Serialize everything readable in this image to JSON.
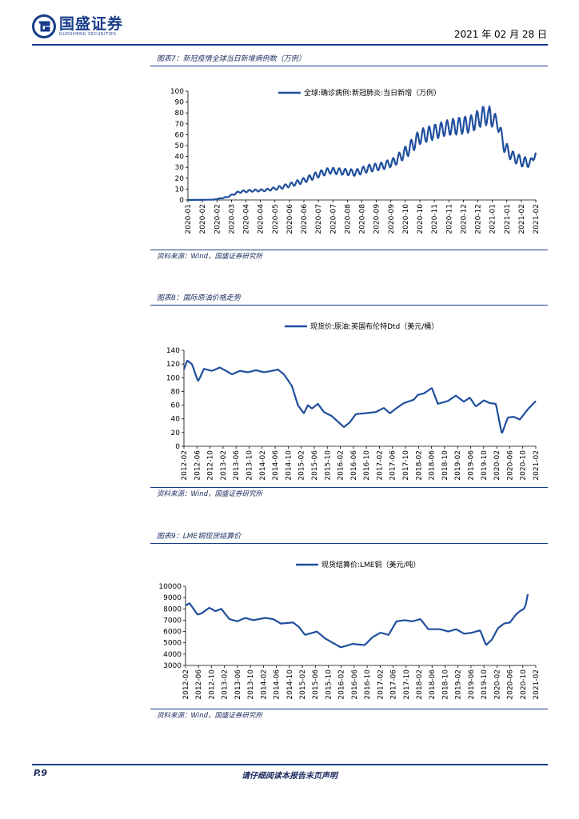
{
  "header": {
    "logo_cn": "国盛证券",
    "logo_en": "GUOSHENG SECURITIES",
    "date": "2021 年 02 月 28 日"
  },
  "footer": {
    "page": "P.9",
    "disclaimer": "请仔细阅读本报告末页声明"
  },
  "figures": [
    {
      "title": "图表7：新冠疫情全球当日新增病例数（万例）",
      "source": "资料来源：Wind，国盛证券研究所"
    },
    {
      "title": "图表8：国际原油价格走势",
      "source": "资料来源：Wind，国盛证券研究所"
    },
    {
      "title": "图表9：LME铜现货结算价",
      "source": "资料来源：Wind，国盛证券研究所"
    }
  ],
  "colors": {
    "series": "#1f4e9e",
    "brand": "#173c8a"
  },
  "chart_data": [
    {
      "type": "line",
      "legend": "全球:确诊病例:新冠肺炎:当日新增（万例）",
      "ylim": [
        0,
        100
      ],
      "yticks": [
        0,
        10,
        20,
        30,
        40,
        50,
        60,
        70,
        80,
        90,
        100
      ],
      "xlim": [
        0,
        13.5
      ],
      "xticks": [
        "2020-01",
        "2020-02",
        "2020-02",
        "2020-03",
        "2020-04",
        "2020-04",
        "2020-05",
        "2020-06",
        "2020-06",
        "2020-07",
        "2020-07",
        "2020-08",
        "2020-08",
        "2020-09",
        "2020-09",
        "2020-10",
        "2020-10",
        "2020-11",
        "2020-11",
        "2020-12",
        "2020-12",
        "2021-01",
        "2021-01",
        "2021-02",
        "2021-02"
      ],
      "x": [
        0,
        0.5,
        1,
        1.5,
        2,
        2.5,
        3,
        3.5,
        4,
        4.5,
        5,
        5.5,
        6,
        6.5,
        7,
        7.5,
        8,
        8.5,
        9,
        9.5,
        10,
        10.5,
        11,
        11.5,
        12,
        12.3,
        12.6,
        13,
        13.3,
        13.5
      ],
      "values": [
        0,
        0.1,
        0.3,
        2.5,
        7.5,
        8.5,
        9,
        11,
        14,
        18,
        23,
        27,
        26,
        25,
        29,
        31,
        35,
        45,
        58,
        62,
        66,
        68,
        70,
        78,
        72,
        48,
        40,
        35,
        34,
        43
      ],
      "wave_amplitude": [
        0,
        0,
        0,
        0.4,
        1,
        1,
        1,
        1.5,
        2,
        2.5,
        3,
        3,
        3,
        3,
        3.5,
        3.5,
        4,
        6,
        7,
        7,
        7,
        8,
        8,
        9,
        6,
        6,
        5,
        5,
        4,
        2
      ],
      "peak": {
        "x": 11.7,
        "value": 86
      }
    },
    {
      "type": "line",
      "legend": "现货价:原油:英国布伦特Dtd（美元/桶）",
      "ylim": [
        0,
        140
      ],
      "yticks": [
        0,
        20,
        40,
        60,
        80,
        100,
        120,
        140
      ],
      "xlim": [
        0,
        8.8
      ],
      "xticks": [
        "2012-02",
        "2012-06",
        "2012-10",
        "2013-02",
        "2013-06",
        "2013-10",
        "2014-02",
        "2014-06",
        "2014-10",
        "2015-02",
        "2015-06",
        "2015-10",
        "2016-02",
        "2016-06",
        "2016-10",
        "2017-02",
        "2017-06",
        "2017-10",
        "2018-02",
        "2018-06",
        "2018-10",
        "2019-02",
        "2019-06",
        "2019-10",
        "2020-02",
        "2020-06",
        "2020-10",
        "2021-02"
      ],
      "x": [
        0,
        0.08,
        0.2,
        0.35,
        0.4,
        0.5,
        0.7,
        0.9,
        1.2,
        1.4,
        1.6,
        1.8,
        2.0,
        2.2,
        2.35,
        2.5,
        2.7,
        2.85,
        3.0,
        3.1,
        3.2,
        3.35,
        3.5,
        3.7,
        3.85,
        4.0,
        4.15,
        4.3,
        4.5,
        4.8,
        5.0,
        5.15,
        5.3,
        5.5,
        5.75,
        5.85,
        6.0,
        6.2,
        6.35,
        6.6,
        6.8,
        7.0,
        7.15,
        7.3,
        7.5,
        7.65,
        7.8,
        7.95,
        8.1,
        8.25,
        8.4,
        8.6,
        8.8
      ],
      "values": [
        112,
        125,
        120,
        95,
        100,
        113,
        110,
        115,
        105,
        110,
        108,
        111,
        108,
        110,
        112,
        105,
        88,
        60,
        48,
        60,
        55,
        62,
        50,
        44,
        36,
        28,
        35,
        47,
        48,
        50,
        56,
        48,
        55,
        63,
        68,
        75,
        77,
        85,
        62,
        66,
        74,
        65,
        71,
        58,
        67,
        63,
        62,
        18,
        42,
        43,
        39,
        54,
        66
      ]
    },
    {
      "type": "line",
      "legend": "现货结算价:LME铜（美元/吨）",
      "ylim": [
        3000,
        10000
      ],
      "yticks": [
        3000,
        4000,
        5000,
        6000,
        7000,
        8000,
        9000,
        10000
      ],
      "xlim": [
        0,
        8.8
      ],
      "xticks": [
        "2012-02",
        "2012-06",
        "2012-10",
        "2013-02",
        "2013-06",
        "2013-10",
        "2014-02",
        "2014-06",
        "2014-10",
        "2015-02",
        "2015-06",
        "2015-10",
        "2016-02",
        "2016-06",
        "2016-10",
        "2017-02",
        "2017-06",
        "2017-10",
        "2018-02",
        "2018-06",
        "2018-10",
        "2019-02",
        "2019-06",
        "2019-10",
        "2020-02",
        "2020-06",
        "2020-10",
        "2021-02"
      ],
      "x": [
        0,
        0.1,
        0.3,
        0.4,
        0.6,
        0.75,
        0.9,
        1.1,
        1.3,
        1.5,
        1.7,
        2.0,
        2.2,
        2.4,
        2.7,
        2.85,
        3.0,
        3.3,
        3.5,
        3.7,
        3.9,
        4.2,
        4.5,
        4.7,
        4.9,
        5.1,
        5.3,
        5.5,
        5.7,
        5.9,
        6.1,
        6.4,
        6.6,
        6.8,
        7.0,
        7.2,
        7.4,
        7.55,
        7.7,
        7.85,
        8.0,
        8.15,
        8.3,
        8.4,
        8.5,
        8.55,
        8.6
      ],
      "values": [
        8300,
        8500,
        7500,
        7600,
        8100,
        7800,
        8000,
        7100,
        6900,
        7200,
        7000,
        7200,
        7100,
        6700,
        6800,
        6400,
        5700,
        6000,
        5400,
        5000,
        4600,
        4900,
        4800,
        5500,
        5900,
        5700,
        6900,
        7000,
        6900,
        7100,
        6200,
        6200,
        6000,
        6200,
        5800,
        5900,
        6100,
        4800,
        5300,
        6300,
        6700,
        6800,
        7500,
        7800,
        8000,
        8400,
        9300
      ]
    }
  ]
}
